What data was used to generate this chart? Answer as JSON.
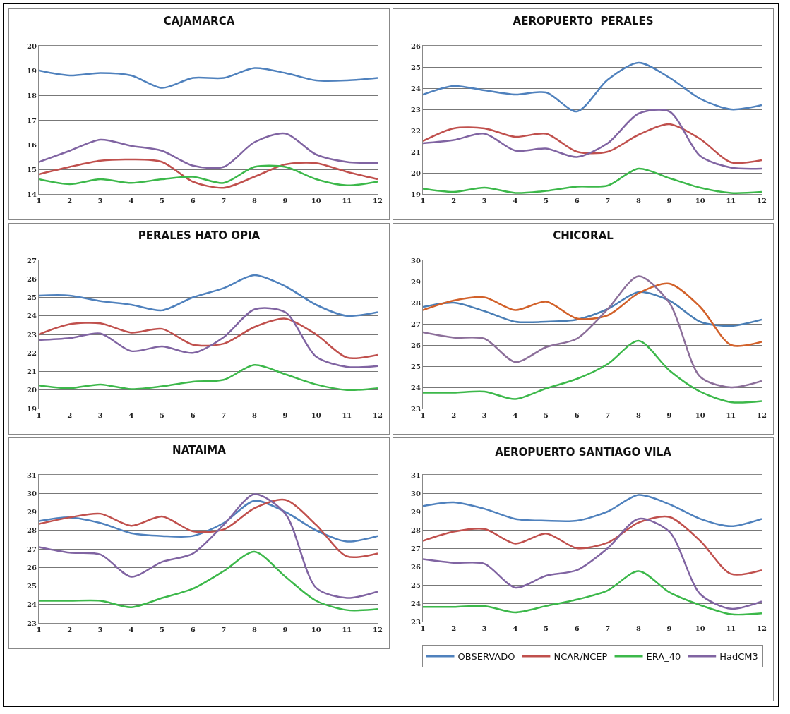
{
  "chart_data": [
    {
      "type": "line",
      "title": "CAJAMARCA",
      "x": [
        1,
        2,
        3,
        4,
        5,
        6,
        7,
        8,
        9,
        10,
        11,
        12
      ],
      "xlim": [
        1,
        12
      ],
      "xticks": [
        1,
        2,
        3,
        4,
        5,
        6,
        7,
        8,
        9,
        10,
        11,
        12
      ],
      "ylim": [
        14,
        20
      ],
      "yticks": [
        14,
        15,
        16,
        17,
        18,
        19,
        20
      ],
      "grid": "y",
      "series": [
        {
          "color": "#4f81bd",
          "values": [
            19.0,
            18.8,
            18.9,
            18.8,
            18.3,
            18.7,
            18.7,
            19.1,
            18.9,
            18.6,
            18.6,
            18.7
          ]
        },
        {
          "color": "#c0504d",
          "values": [
            14.8,
            15.1,
            15.35,
            15.4,
            15.3,
            14.5,
            14.25,
            14.7,
            15.2,
            15.25,
            14.9,
            14.6
          ]
        },
        {
          "color": "#3cb84a",
          "values": [
            14.6,
            14.4,
            14.6,
            14.45,
            14.6,
            14.7,
            14.45,
            15.1,
            15.1,
            14.6,
            14.35,
            14.5
          ]
        },
        {
          "color": "#8064a2",
          "values": [
            15.3,
            15.75,
            16.2,
            15.95,
            15.75,
            15.15,
            15.1,
            16.1,
            16.45,
            15.6,
            15.3,
            15.25
          ]
        }
      ]
    },
    {
      "type": "line",
      "title": "AEROPUERTO  PERALES",
      "x": [
        1,
        2,
        3,
        4,
        5,
        6,
        7,
        8,
        9,
        10,
        11,
        12
      ],
      "xlim": [
        1,
        12
      ],
      "xticks": [
        1,
        2,
        3,
        4,
        5,
        6,
        7,
        8,
        9,
        10,
        11,
        12
      ],
      "ylim": [
        19,
        26
      ],
      "yticks": [
        19,
        20,
        21,
        22,
        23,
        24,
        25,
        26
      ],
      "grid": "y",
      "series": [
        {
          "color": "#4f81bd",
          "values": [
            23.7,
            24.1,
            23.9,
            23.7,
            23.8,
            22.9,
            24.4,
            25.2,
            24.5,
            23.5,
            23.0,
            23.2
          ]
        },
        {
          "color": "#c0504d",
          "values": [
            21.5,
            22.1,
            22.1,
            21.7,
            21.85,
            21.0,
            21.0,
            21.8,
            22.3,
            21.6,
            20.5,
            20.6
          ]
        },
        {
          "color": "#3cb84a",
          "values": [
            19.25,
            19.1,
            19.3,
            19.05,
            19.15,
            19.35,
            19.4,
            20.2,
            19.75,
            19.3,
            19.05,
            19.1
          ]
        },
        {
          "color": "#8064a2",
          "values": [
            21.4,
            21.55,
            21.85,
            21.05,
            21.15,
            20.75,
            21.4,
            22.8,
            22.9,
            20.8,
            20.25,
            20.2
          ]
        }
      ]
    },
    {
      "type": "line",
      "title": "PERALES HATO OPIA",
      "x": [
        1,
        2,
        3,
        4,
        5,
        6,
        7,
        8,
        9,
        10,
        11,
        12
      ],
      "xlim": [
        1,
        12
      ],
      "xticks": [
        1,
        2,
        3,
        4,
        5,
        6,
        7,
        8,
        9,
        10,
        11,
        12
      ],
      "ylim": [
        19,
        27
      ],
      "yticks": [
        19,
        20,
        21,
        22,
        23,
        24,
        25,
        26,
        27
      ],
      "grid": "y",
      "series": [
        {
          "color": "#4f81bd",
          "values": [
            25.1,
            25.1,
            24.8,
            24.6,
            24.3,
            25.0,
            25.5,
            26.2,
            25.6,
            24.6,
            24.0,
            24.2
          ]
        },
        {
          "color": "#c0504d",
          "values": [
            23.0,
            23.55,
            23.6,
            23.1,
            23.3,
            22.45,
            22.5,
            23.4,
            23.85,
            23.0,
            21.75,
            21.9
          ]
        },
        {
          "color": "#3cb84a",
          "values": [
            20.25,
            20.1,
            20.3,
            20.05,
            20.2,
            20.45,
            20.55,
            21.35,
            20.85,
            20.3,
            20.0,
            20.1
          ]
        },
        {
          "color": "#8064a2",
          "values": [
            22.7,
            22.8,
            23.05,
            22.1,
            22.35,
            22.0,
            22.85,
            24.35,
            24.2,
            21.8,
            21.25,
            21.3
          ]
        }
      ]
    },
    {
      "type": "line",
      "title": "CHICORAL",
      "x": [
        1,
        2,
        3,
        4,
        5,
        6,
        7,
        8,
        9,
        10,
        11,
        12
      ],
      "xlim": [
        1,
        12
      ],
      "xticks": [
        1,
        2,
        3,
        4,
        5,
        6,
        7,
        8,
        9,
        10,
        11,
        12
      ],
      "ylim": [
        23,
        30
      ],
      "yticks": [
        23,
        24,
        25,
        26,
        27,
        28,
        29,
        30
      ],
      "grid": "y",
      "series": [
        {
          "color": "#4a7eb5",
          "values": [
            27.8,
            28.0,
            27.6,
            27.1,
            27.1,
            27.2,
            27.7,
            28.5,
            28.1,
            27.1,
            26.9,
            27.2
          ]
        },
        {
          "color": "#d2612a",
          "values": [
            27.65,
            28.1,
            28.25,
            27.65,
            28.05,
            27.25,
            27.4,
            28.45,
            28.9,
            27.8,
            26.0,
            26.15
          ]
        },
        {
          "color": "#3cb84a",
          "values": [
            23.75,
            23.75,
            23.8,
            23.45,
            23.95,
            24.4,
            25.1,
            26.2,
            24.8,
            23.8,
            23.3,
            23.35
          ]
        },
        {
          "color": "#8c6f9a",
          "values": [
            26.6,
            26.35,
            26.3,
            25.2,
            25.9,
            26.3,
            27.7,
            29.25,
            28.0,
            24.5,
            24.0,
            24.3
          ]
        }
      ]
    },
    {
      "type": "line",
      "title": "NATAIMA",
      "x": [
        1,
        2,
        3,
        4,
        5,
        6,
        7,
        8,
        9,
        10,
        11,
        12
      ],
      "xlim": [
        1,
        12
      ],
      "xticks": [
        1,
        2,
        3,
        4,
        5,
        6,
        7,
        8,
        9,
        10,
        11,
        12
      ],
      "ylim": [
        23,
        31
      ],
      "yticks": [
        23,
        24,
        25,
        26,
        27,
        28,
        29,
        30,
        31
      ],
      "grid": "y",
      "series": [
        {
          "color": "#4f81bd",
          "values": [
            28.5,
            28.7,
            28.4,
            27.85,
            27.7,
            27.7,
            28.4,
            29.6,
            29.0,
            28.0,
            27.4,
            27.7
          ]
        },
        {
          "color": "#c0504d",
          "values": [
            28.35,
            28.7,
            28.9,
            28.25,
            28.75,
            27.95,
            28.05,
            29.2,
            29.65,
            28.3,
            26.6,
            26.75
          ]
        },
        {
          "color": "#3cb84a",
          "values": [
            24.2,
            24.2,
            24.2,
            23.85,
            24.35,
            24.85,
            25.8,
            26.85,
            25.5,
            24.2,
            23.7,
            23.75
          ]
        },
        {
          "color": "#8064a2",
          "values": [
            27.1,
            26.8,
            26.7,
            25.5,
            26.3,
            26.75,
            28.3,
            29.95,
            28.9,
            24.9,
            24.35,
            24.7
          ]
        }
      ]
    },
    {
      "type": "line",
      "title": "AEROPUERTO SANTIAGO VILA",
      "x": [
        1,
        2,
        3,
        4,
        5,
        6,
        7,
        8,
        9,
        10,
        11,
        12
      ],
      "xlim": [
        1,
        12
      ],
      "xticks": [
        1,
        2,
        3,
        4,
        5,
        6,
        7,
        8,
        9,
        10,
        11,
        12
      ],
      "ylim": [
        23,
        31
      ],
      "yticks": [
        23,
        24,
        25,
        26,
        27,
        28,
        29,
        30,
        31
      ],
      "grid": "y",
      "legend": "bottom",
      "series": [
        {
          "name": "OBSERVADO",
          "color": "#4f81bd",
          "values": [
            29.3,
            29.5,
            29.15,
            28.6,
            28.5,
            28.5,
            29.0,
            29.9,
            29.4,
            28.6,
            28.2,
            28.6
          ]
        },
        {
          "name": "NCAR/NCEP",
          "color": "#c0504d",
          "values": [
            27.4,
            27.9,
            28.05,
            27.25,
            27.8,
            27.0,
            27.3,
            28.4,
            28.7,
            27.4,
            25.6,
            25.8
          ]
        },
        {
          "name": "ERA_40",
          "color": "#3cb84a",
          "values": [
            23.8,
            23.8,
            23.85,
            23.5,
            23.85,
            24.2,
            24.7,
            25.75,
            24.6,
            23.9,
            23.4,
            23.45
          ]
        },
        {
          "name": "HadCM3",
          "color": "#8064a2",
          "values": [
            26.4,
            26.2,
            26.15,
            24.85,
            25.5,
            25.8,
            27.0,
            28.6,
            27.9,
            24.5,
            23.7,
            24.1
          ]
        }
      ]
    }
  ]
}
